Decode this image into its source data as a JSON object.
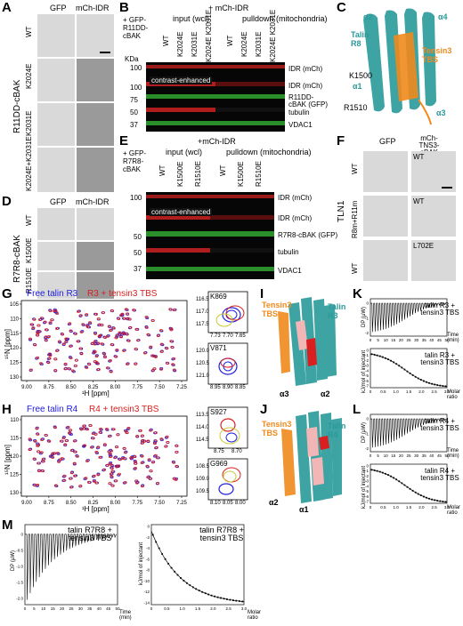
{
  "panels": {
    "A": {
      "letter": "A",
      "col_gfp": "GFP",
      "col_mch": "mCh-IDR",
      "group": "R11DD-cBAK",
      "rows": [
        "WT",
        "K2024E",
        "K2031E",
        "K2024E+K2031E"
      ]
    },
    "B": {
      "letter": "B",
      "construct": "+ GFP-R11DD-cBAK",
      "top": "+ mCh-IDR",
      "input": "input (wcl)",
      "pulldown": "pulldown (mitochondria)",
      "lanes": [
        "WT",
        "K2024E",
        "K2031E",
        "K2024E K2031E",
        "WT",
        "K2024E",
        "K2031E",
        "K2024E K2031E"
      ],
      "kda": "KDa",
      "markers": [
        "100",
        "100",
        "75",
        "50",
        "37"
      ],
      "contrast": "contrast-enhanced",
      "bands": [
        "IDR (mCh)",
        "IDR (mCh)",
        "R11DD-cBAK (GFP)",
        "tubulin",
        "VDAC1"
      ]
    },
    "C": {
      "letter": "C",
      "alpha2": "α2",
      "alpha4": "α4",
      "talin": "Talin R8",
      "tbs": "Tensin3 TBS",
      "k1500": "K1500",
      "alpha1": "α1",
      "r1510": "R1510",
      "alpha3": "α3"
    },
    "D": {
      "letter": "D",
      "col_gfp": "GFP",
      "col_mch": "mCh-IDR",
      "group": "R7R8-cBAK",
      "rows": [
        "WT",
        "K1500E",
        "R1510E"
      ]
    },
    "E": {
      "letter": "E",
      "construct": "+ GFP-R7R8-cBAK",
      "top": "+mCh-IDR",
      "input": "input (wcl)",
      "pulldown": "pulldown (mitochondria)",
      "lanes": [
        "WT",
        "K1500E",
        "R1510E",
        "WT",
        "K1500E",
        "R1510E"
      ],
      "markers": [
        "100",
        "50",
        "50",
        "37"
      ],
      "contrast": "contrast-enhanced",
      "bands": [
        "IDR (mCh)",
        "IDR (mCh)",
        "R7R8-cBAK (GFP)",
        "tubulin",
        "VDAC1"
      ]
    },
    "F": {
      "letter": "F",
      "col_gfp": "GFP",
      "col_mch": "mCh-TNS3-cBAK",
      "group": "TLN1",
      "rows": [
        "WT",
        "R8m+R11m",
        "WT"
      ],
      "inset_labels": [
        "WT",
        "WT",
        "L702E"
      ]
    },
    "G": {
      "letter": "G",
      "free": "Free talin R3",
      "bound": "R3 + tensin3 TBS",
      "xlabel": "¹H [ppm]",
      "ylabel": "¹⁵N [ppm]",
      "xticks": [
        "9.00",
        "8.75",
        "8.50",
        "8.25",
        "8.00",
        "7.75",
        "7.50",
        "7.25"
      ],
      "yticks": [
        "105",
        "110",
        "115",
        "120",
        "125",
        "130"
      ],
      "zoom1": "K869",
      "zoom1_y": [
        "116.5",
        "117.0",
        "117.5"
      ],
      "zoom1_x": [
        "7.73",
        "7.70",
        "7.65"
      ],
      "zoom2": "V871",
      "zoom2_y": [
        "120.0",
        "120.5",
        "121.0"
      ],
      "zoom2_x": [
        "8.95",
        "8.90",
        "8.85"
      ]
    },
    "H": {
      "letter": "H",
      "free": "Free talin R4",
      "bound": "R4 + tensin3 TBS",
      "xlabel": "¹H [ppm]",
      "ylabel": "¹⁵N [ppm]",
      "xticks": [
        "9.00",
        "8.75",
        "8.50",
        "8.25",
        "8.00",
        "7.75",
        "7.50",
        "7.25"
      ],
      "yticks": [
        "110",
        "115",
        "120",
        "125",
        "130"
      ],
      "zoom1": "S927",
      "zoom1_y": [
        "113.5",
        "114.0",
        "114.5"
      ],
      "zoom1_x": [
        "8.75",
        "8.70"
      ],
      "zoom2": "G969",
      "zoom2_y": [
        "108.5",
        "109.0",
        "109.5"
      ],
      "zoom2_x": [
        "8.10",
        "8.05",
        "8.00"
      ]
    },
    "I": {
      "letter": "I",
      "tbs": "Tensin3 TBS",
      "talin": "Talin R3",
      "a3": "α3",
      "a2": "α2"
    },
    "J": {
      "letter": "J",
      "tbs": "Tensin3 TBS",
      "talin": "Talin R4",
      "a2": "α2",
      "a1": "α1"
    },
    "K": {
      "letter": "K",
      "title1": "talin R3 + tensin3 TBS",
      "title2": "talin R3 + tensin3 TBS",
      "ylab_top": "DP (μW)",
      "ylab_bot": "kJ/mol of injectant",
      "time": "Time (min)",
      "molar": "Molar ratio",
      "top_yticks": [
        "0",
        "-1",
        "-2"
      ],
      "bot_yticks": [
        "0",
        "-1",
        "-2",
        "-3",
        "-4",
        "-5",
        "-6",
        "-7"
      ]
    },
    "L": {
      "letter": "L",
      "title1": "talin R4 + tensin3 TBS",
      "title2": "talin R4 + tensin3 TBS",
      "ylab_top": "DP (μW)",
      "ylab_bot": "kJ/mol of injectant",
      "time": "Time (min)",
      "molar": "Molar ratio",
      "top_yticks": [
        "0",
        "-1",
        "-2"
      ],
      "bot_yticks": [
        "0",
        "-1",
        "-2",
        "-3",
        "-4",
        "-5",
        "-6",
        "-7"
      ]
    },
    "M": {
      "letter": "M",
      "title1": "talin R7R8 + tensin3 TBS",
      "title2": "talin R7R8 + tensin3 TBS",
      "ylab_top": "DP (μW)",
      "ylab_bot": "kJ/mol of injectant",
      "time": "Time (min)",
      "molar": "Molar ratio",
      "top_yticks": [
        "0",
        "-0.5",
        "-1.0",
        "-1.5",
        "-2.0"
      ],
      "bot_yticks": [
        "0",
        "-2",
        "-4",
        "-6",
        "-8",
        "-10",
        "-12",
        "-14"
      ]
    }
  },
  "itc_xticks_time": [
    "0",
    "5",
    "10",
    "15",
    "20",
    "25",
    "30",
    "35",
    "40",
    "45",
    "50"
  ],
  "itc_xticks_ratio": [
    "0",
    "0.5",
    "1.0",
    "1.5",
    "2.0",
    "2.5",
    "3.0"
  ],
  "colors": {
    "red": "#d91f1f",
    "blue": "#2020e0",
    "orange": "#f08a1c",
    "teal": "#2a9a9a",
    "pink": "#f2b6b6"
  }
}
